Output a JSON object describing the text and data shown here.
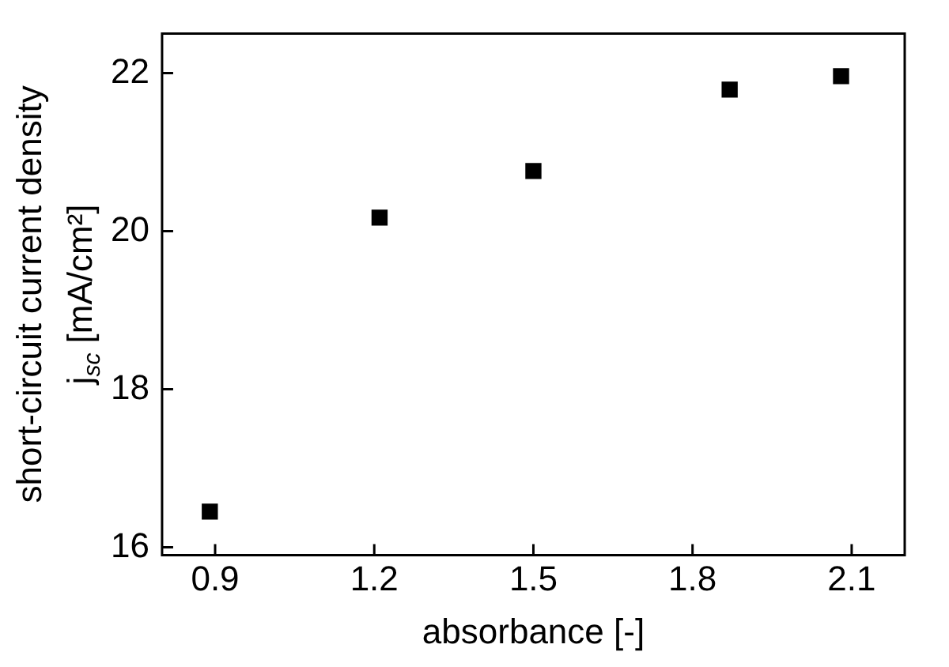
{
  "chart_data": {
    "type": "scatter",
    "xlabel": "absorbance [-]",
    "ylabel": "short-circuit current density\nj$_{sc}$ [mA/cm²]",
    "x": [
      0.89,
      1.21,
      1.5,
      1.87,
      2.08
    ],
    "series": [
      {
        "color": "#000000",
        "values": [
          16.45,
          20.17,
          20.76,
          21.79,
          21.96
        ]
      }
    ],
    "xlim": [
      0.8,
      2.2
    ],
    "xticks": [
      0.9,
      1.2,
      1.5,
      1.8,
      2.1
    ],
    "ylim": [
      15.9,
      22.5
    ],
    "yticks": [
      16,
      18,
      20,
      22
    ],
    "marker": "square",
    "grid": false,
    "legend": false
  }
}
